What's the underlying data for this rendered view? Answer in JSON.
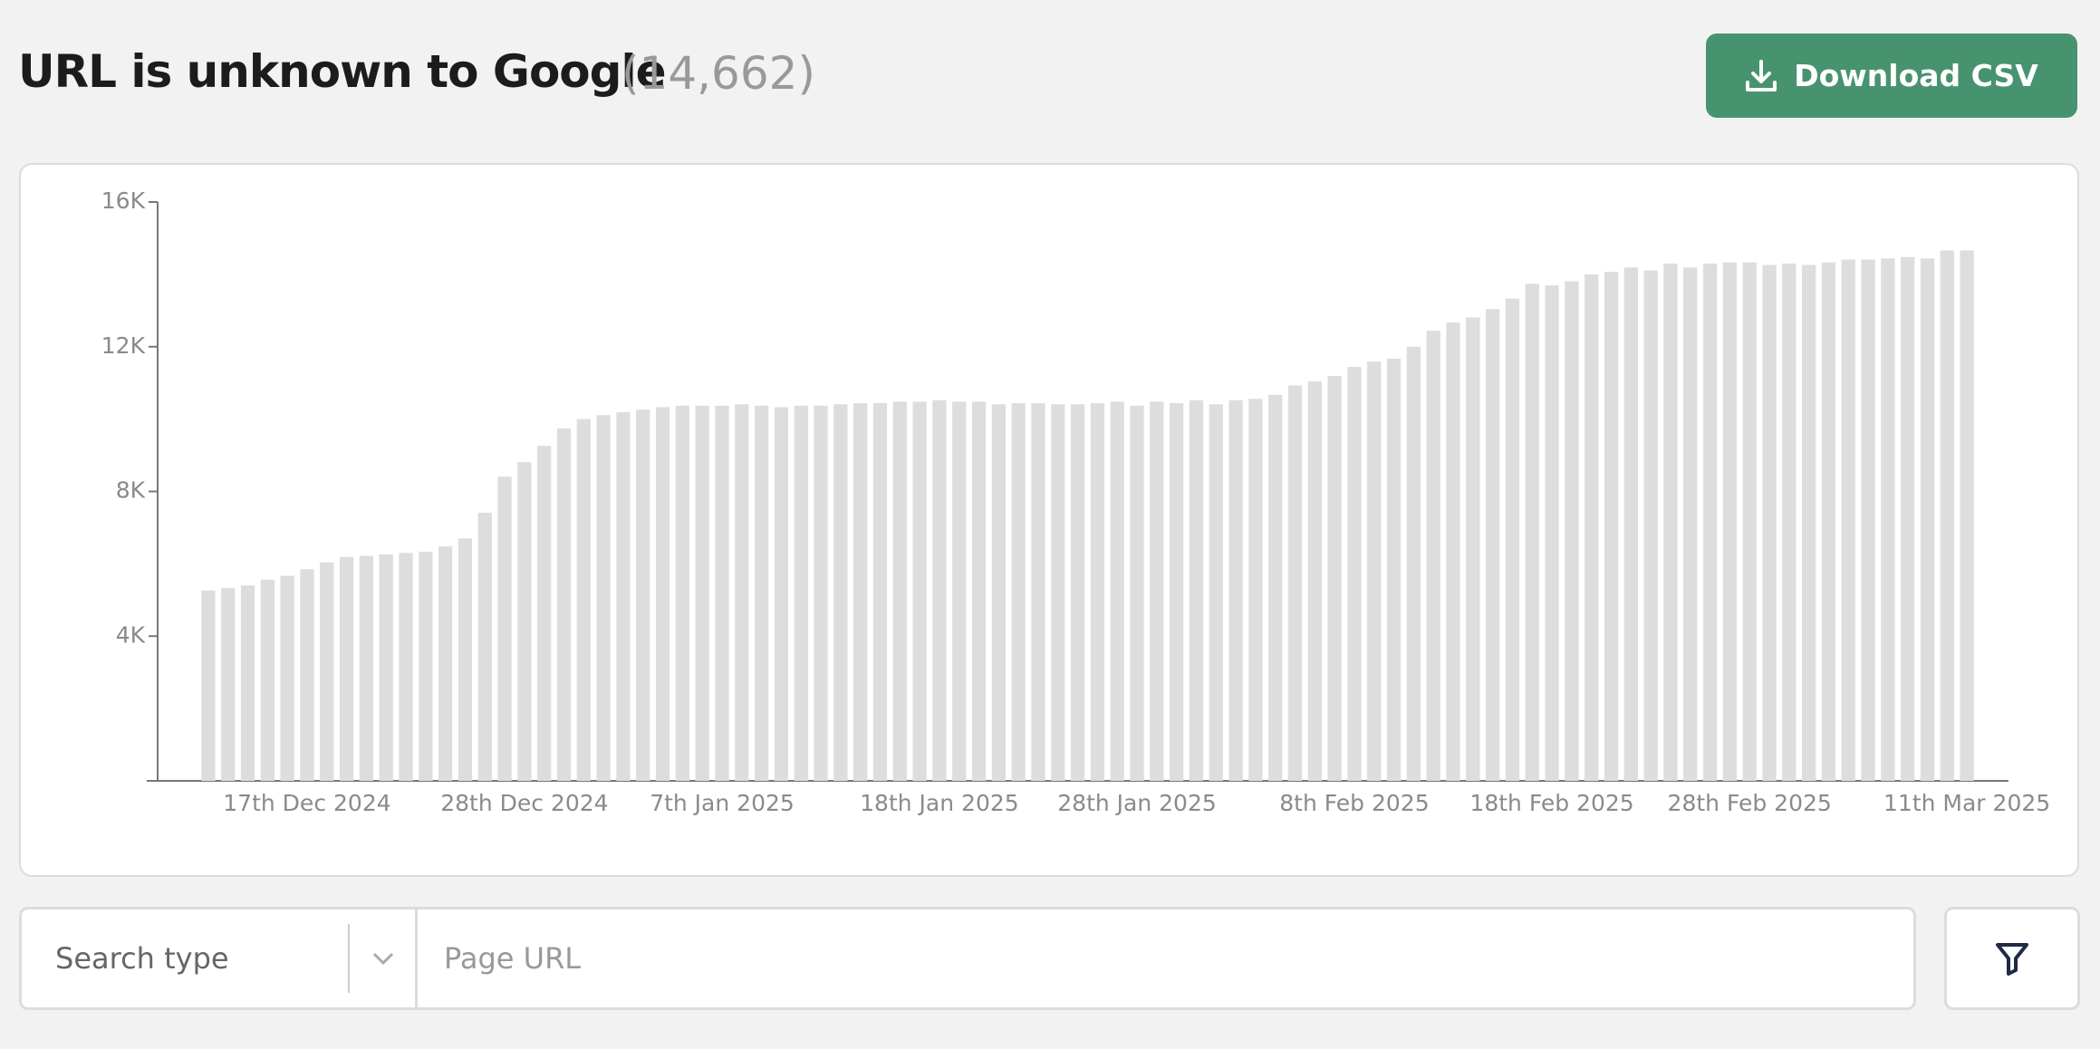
{
  "header": {
    "title": "URL is unknown to Google",
    "count": "(14,662)",
    "button": "Download CSV"
  },
  "chart_data": {
    "type": "bar",
    "color": "#dddddd",
    "categories": [
      null,
      null,
      null,
      null,
      null,
      "17th Dec 2024",
      null,
      null,
      null,
      null,
      null,
      null,
      null,
      null,
      null,
      null,
      "28th Dec 2024",
      null,
      null,
      null,
      null,
      null,
      null,
      null,
      null,
      null,
      "7th Jan 2025",
      null,
      null,
      null,
      null,
      null,
      null,
      null,
      null,
      null,
      null,
      "18th Jan 2025",
      null,
      null,
      null,
      null,
      null,
      null,
      null,
      null,
      null,
      "28th Jan 2025",
      null,
      null,
      null,
      null,
      null,
      null,
      null,
      null,
      null,
      null,
      "8th Feb 2025",
      null,
      null,
      null,
      null,
      null,
      null,
      null,
      null,
      null,
      "18th Feb 2025",
      null,
      null,
      null,
      null,
      null,
      null,
      null,
      null,
      null,
      "28th Feb 2025",
      null,
      null,
      null,
      null,
      null,
      null,
      null,
      null,
      null,
      null,
      "11th Mar 2025"
    ],
    "values": [
      5260,
      5330,
      5400,
      5560,
      5670,
      5850,
      6040,
      6190,
      6220,
      6260,
      6300,
      6330,
      6480,
      6700,
      7410,
      8410,
      8810,
      9260,
      9740,
      10000,
      10110,
      10190,
      10260,
      10330,
      10370,
      10370,
      10370,
      10410,
      10370,
      10330,
      10370,
      10370,
      10410,
      10440,
      10440,
      10480,
      10480,
      10520,
      10480,
      10480,
      10410,
      10440,
      10440,
      10410,
      10410,
      10440,
      10480,
      10370,
      10480,
      10440,
      10520,
      10410,
      10520,
      10560,
      10670,
      10930,
      11040,
      11190,
      11440,
      11590,
      11670,
      12000,
      12440,
      12670,
      12810,
      13040,
      13330,
      13740,
      13700,
      13810,
      14000,
      14070,
      14190,
      14110,
      14300,
      14190,
      14300,
      14330,
      14330,
      14260,
      14300,
      14260,
      14330,
      14410,
      14410,
      14440,
      14480,
      14440,
      14660,
      14662
    ],
    "ylim": [
      0,
      16000
    ],
    "yticks": [
      {
        "value": 4000,
        "label": "4K"
      },
      {
        "value": 8000,
        "label": "8K"
      },
      {
        "value": 12000,
        "label": "12K"
      },
      {
        "value": 16000,
        "label": "16K"
      }
    ],
    "grid": false
  },
  "filters": {
    "select": "Search type",
    "input": "Page URL"
  }
}
